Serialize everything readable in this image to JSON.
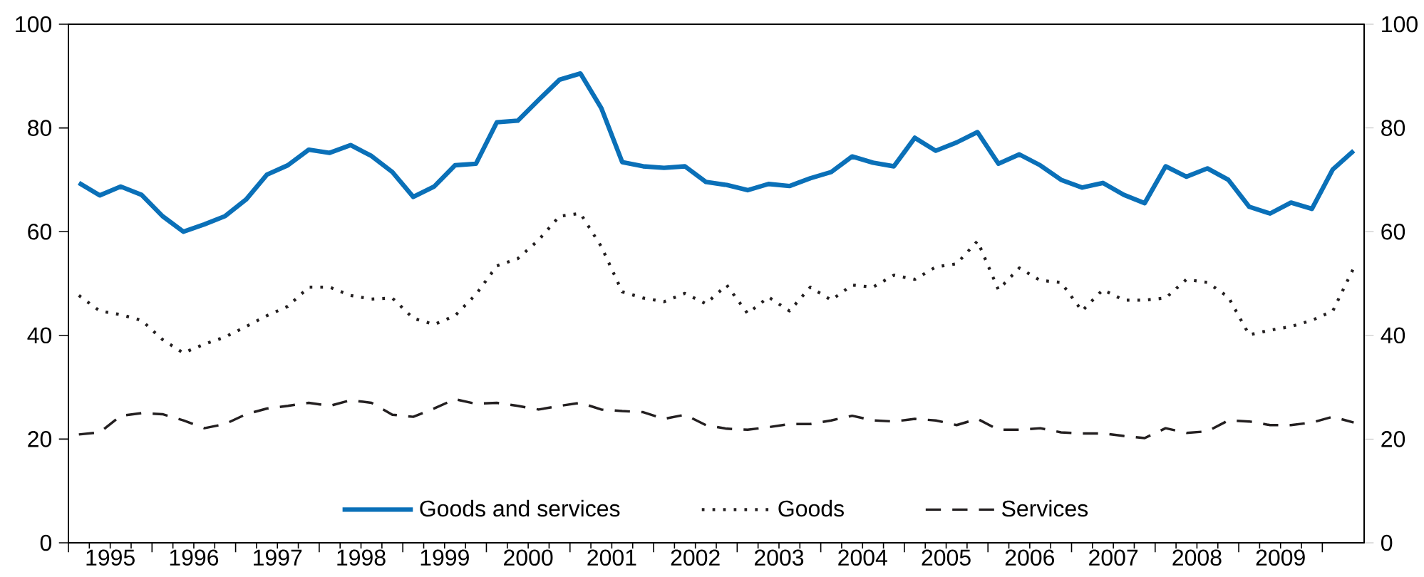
{
  "chart_data": {
    "type": "line",
    "x": [
      1995.125,
      1995.375,
      1995.625,
      1995.875,
      1996.125,
      1996.375,
      1996.625,
      1996.875,
      1997.125,
      1997.375,
      1997.625,
      1997.875,
      1998.125,
      1998.375,
      1998.625,
      1998.875,
      1999.125,
      1999.375,
      1999.625,
      1999.875,
      2000.125,
      2000.375,
      2000.625,
      2000.875,
      2001.125,
      2001.375,
      2001.625,
      2001.875,
      2002.125,
      2002.375,
      2002.625,
      2002.875,
      2003.125,
      2003.375,
      2003.625,
      2003.875,
      2004.125,
      2004.375,
      2004.625,
      2004.875,
      2005.125,
      2005.375,
      2005.625,
      2005.875,
      2006.125,
      2006.375,
      2006.625,
      2006.875,
      2007.125,
      2007.375,
      2007.625,
      2007.875,
      2008.125,
      2008.375,
      2008.625,
      2008.875,
      2009.125,
      2009.375,
      2009.625,
      2009.875,
      2010.125,
      2010.375
    ],
    "series": [
      {
        "name": "Goods and services",
        "color": "#0a70b8",
        "line_style": "solid",
        "values": [
          69.4,
          67.0,
          68.7,
          67.1,
          63.0,
          60.0,
          61.4,
          63.0,
          66.2,
          71.0,
          72.8,
          75.8,
          75.2,
          76.7,
          74.6,
          71.5,
          66.7,
          68.7,
          72.8,
          73.1,
          81.1,
          81.4,
          85.4,
          89.3,
          90.5,
          83.8,
          73.4,
          72.6,
          72.3,
          72.6,
          69.6,
          69.0,
          68.0,
          69.2,
          68.8,
          70.3,
          71.5,
          74.5,
          73.3,
          72.6,
          78.1,
          75.6,
          77.2,
          79.2,
          73.1,
          74.9,
          72.8,
          70.0,
          68.5,
          69.4,
          67.1,
          65.5,
          72.6,
          70.6,
          72.2,
          70.0,
          64.8,
          63.5,
          65.6,
          64.4,
          72.0,
          75.6
        ]
      },
      {
        "name": "Goods",
        "color": "#231f20",
        "line_style": "dotted",
        "values": [
          47.7,
          44.7,
          44.0,
          42.9,
          39.2,
          36.6,
          38.3,
          39.7,
          41.7,
          43.8,
          45.6,
          49.3,
          49.3,
          47.7,
          47.0,
          47.2,
          43.3,
          42.1,
          43.8,
          47.9,
          53.4,
          54.8,
          58.4,
          63.0,
          63.5,
          57.1,
          48.4,
          47.2,
          46.5,
          48.1,
          46.1,
          49.7,
          44.2,
          47.4,
          44.7,
          49.3,
          46.8,
          49.7,
          49.3,
          51.6,
          50.8,
          53.2,
          53.8,
          58.2,
          48.8,
          53.0,
          50.6,
          50.2,
          44.7,
          48.8,
          46.8,
          46.8,
          47.2,
          50.8,
          50.2,
          47.4,
          40.1,
          41.0,
          41.7,
          42.9,
          44.7,
          53.0
        ]
      },
      {
        "name": "Services",
        "color": "#231f20",
        "line_style": "dashed",
        "values": [
          20.9,
          21.3,
          24.5,
          25.0,
          24.8,
          23.6,
          22.1,
          22.9,
          24.8,
          25.9,
          26.4,
          27.0,
          26.4,
          27.5,
          27.0,
          24.7,
          24.3,
          25.9,
          27.7,
          26.8,
          27.0,
          26.4,
          25.7,
          26.4,
          27.0,
          25.7,
          25.4,
          25.2,
          23.9,
          24.7,
          22.7,
          22.0,
          21.8,
          22.3,
          22.9,
          22.9,
          23.6,
          24.5,
          23.6,
          23.4,
          23.9,
          23.6,
          22.7,
          23.9,
          21.8,
          21.8,
          22.1,
          21.3,
          21.1,
          21.1,
          20.6,
          20.2,
          22.1,
          21.2,
          21.5,
          23.6,
          23.4,
          22.7,
          22.7,
          23.2,
          24.3,
          23.2
        ]
      }
    ],
    "xlim": [
      1995,
      2010.5
    ],
    "xticks": [
      {
        "value": 1995,
        "label": null
      },
      {
        "value": 1995.5,
        "label": "1995"
      },
      {
        "value": 1996,
        "label": null
      },
      {
        "value": 1996.5,
        "label": "1996"
      },
      {
        "value": 1997,
        "label": null
      },
      {
        "value": 1997.5,
        "label": "1997"
      },
      {
        "value": 1998,
        "label": null
      },
      {
        "value": 1998.5,
        "label": "1998"
      },
      {
        "value": 1999,
        "label": null
      },
      {
        "value": 1999.5,
        "label": "1999"
      },
      {
        "value": 2000,
        "label": null
      },
      {
        "value": 2000.5,
        "label": "2000"
      },
      {
        "value": 2001,
        "label": null
      },
      {
        "value": 2001.5,
        "label": "2001"
      },
      {
        "value": 2002,
        "label": null
      },
      {
        "value": 2002.5,
        "label": "2002"
      },
      {
        "value": 2003,
        "label": null
      },
      {
        "value": 2003.5,
        "label": "2003"
      },
      {
        "value": 2004,
        "label": null
      },
      {
        "value": 2004.5,
        "label": "2004"
      },
      {
        "value": 2005,
        "label": null
      },
      {
        "value": 2005.5,
        "label": "2005"
      },
      {
        "value": 2006,
        "label": null
      },
      {
        "value": 2006.5,
        "label": "2006"
      },
      {
        "value": 2007,
        "label": null
      },
      {
        "value": 2007.5,
        "label": "2007"
      },
      {
        "value": 2008,
        "label": null
      },
      {
        "value": 2008.5,
        "label": "2008"
      },
      {
        "value": 2009,
        "label": null
      },
      {
        "value": 2009.5,
        "label": "2009"
      },
      {
        "value": 2010,
        "label": null
      }
    ],
    "ylim": [
      0,
      100
    ],
    "yticks": [
      0,
      20,
      40,
      60,
      80,
      100
    ],
    "y2lim": [
      0,
      100
    ],
    "y2ticks": [
      0,
      20,
      40,
      60,
      80,
      100
    ],
    "grid": false,
    "legend": "bottom",
    "marker": "none"
  }
}
